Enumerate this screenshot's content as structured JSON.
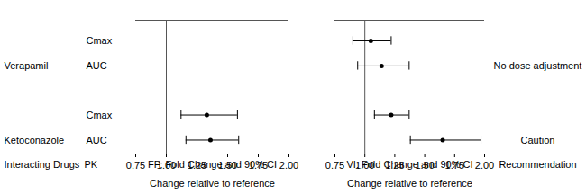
{
  "chart_data": {
    "type": "forest",
    "headers": {
      "drug": "Interacting Drugs",
      "pk": "PK",
      "recommendation": "Recommendation"
    },
    "panels": [
      {
        "title": "FF: Fold Change and 90% CI",
        "xlabel": "Change relative to reference",
        "xlim": [
          0.75,
          2.0
        ],
        "reference": 1,
        "xticks": [
          {
            "value": 0.75,
            "label": "0.75"
          },
          {
            "value": 1,
            "label": "1.00"
          },
          {
            "value": 1.25,
            "label": "1.25"
          },
          {
            "value": 1.5,
            "label": "1.50"
          },
          {
            "value": 1.75,
            "label": "1.75"
          },
          {
            "value": 2,
            "label": "2.00"
          }
        ]
      },
      {
        "title": "VI: Fold Change and 90% CI",
        "xlabel": "Change relative to reference",
        "xlim": [
          0.75,
          2.0
        ],
        "reference": 1,
        "xticks": [
          {
            "value": 0.75,
            "label": "0.75"
          },
          {
            "value": 1,
            "label": "1.00"
          },
          {
            "value": 1.25,
            "label": "1.25"
          },
          {
            "value": 1.5,
            "label": "1.50"
          },
          {
            "value": 1.75,
            "label": "1.75"
          },
          {
            "value": 2,
            "label": "2.00"
          }
        ]
      }
    ],
    "rows": [
      {
        "drug": "Ketoconazole",
        "recommendation": "Caution",
        "pk": [
          {
            "name": "AUC",
            "estimates": [
              {
                "value": 1.36,
                "lo": 1.16,
                "hi": 1.59
              },
              {
                "value": 1.65,
                "lo": 1.38,
                "hi": 1.97
              }
            ]
          },
          {
            "name": "Cmax",
            "estimates": [
              {
                "value": 1.33,
                "lo": 1.12,
                "hi": 1.58
              },
              {
                "value": 1.22,
                "lo": 1.08,
                "hi": 1.37
              }
            ]
          }
        ]
      },
      {
        "drug": "Verapamil",
        "recommendation": "No dose adjustment",
        "pk": [
          {
            "name": "AUC",
            "estimates": [
              null,
              {
                "value": 1.14,
                "lo": 0.94,
                "hi": 1.37
              }
            ]
          },
          {
            "name": "Cmax",
            "estimates": [
              null,
              {
                "value": 1.05,
                "lo": 0.9,
                "hi": 1.22
              }
            ]
          }
        ]
      }
    ],
    "color": "#000000"
  }
}
